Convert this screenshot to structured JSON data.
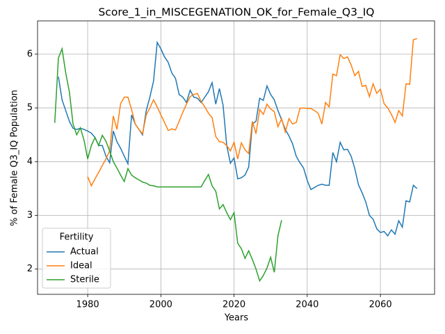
{
  "chart_data": {
    "type": "line",
    "title": "Score_1_in_MISCEGENATION_OK_for_Female_Q3_IQ",
    "xlabel": "Years",
    "ylabel": "% of Female Q3_IQ Population",
    "legend_title": "Fertility",
    "legend": "lower left",
    "grid": true,
    "xlim": [
      1966.3,
      2074.8
    ],
    "ylim": [
      1.53,
      6.62
    ],
    "xticks": [
      1980,
      2000,
      2020,
      2040,
      2060
    ],
    "yticks": [
      2,
      3,
      4,
      5,
      6
    ],
    "x": [
      1971,
      1972,
      1973,
      1974,
      1975,
      1976,
      1977,
      1978,
      1979,
      1980,
      1981,
      1982,
      1983,
      1984,
      1985,
      1986,
      1987,
      1988,
      1989,
      1990,
      1991,
      1992,
      1993,
      1994,
      1995,
      1996,
      1997,
      1998,
      1999,
      2000,
      2001,
      2002,
      2003,
      2004,
      2005,
      2006,
      2007,
      2008,
      2009,
      2010,
      2011,
      2012,
      2013,
      2014,
      2015,
      2016,
      2017,
      2018,
      2019,
      2020,
      2021,
      2022,
      2023,
      2024,
      2025,
      2026,
      2027,
      2028,
      2029,
      2030,
      2031,
      2032,
      2033,
      2034,
      2035,
      2036,
      2037,
      2038,
      2039,
      2040,
      2041,
      2042,
      2043,
      2044,
      2045,
      2046,
      2047,
      2048,
      2049,
      2050,
      2051,
      2052,
      2053,
      2054,
      2055,
      2056,
      2057,
      2058,
      2059,
      2060,
      2061,
      2062,
      2063,
      2064,
      2065,
      2066,
      2067,
      2068,
      2069,
      2070
    ],
    "series": [
      {
        "name": "Actual",
        "color": "#1f77b4",
        "values": [
          null,
          5.58,
          5.15,
          4.95,
          4.75,
          4.62,
          4.6,
          4.62,
          4.6,
          4.57,
          4.53,
          4.45,
          4.3,
          4.3,
          4.1,
          3.98,
          4.57,
          4.37,
          4.25,
          4.1,
          3.96,
          4.87,
          4.7,
          4.6,
          4.5,
          4.95,
          5.2,
          5.5,
          6.22,
          6.1,
          5.95,
          5.85,
          5.65,
          5.55,
          5.25,
          5.2,
          5.1,
          5.33,
          5.2,
          5.18,
          5.1,
          5.2,
          5.3,
          5.47,
          5.07,
          5.36,
          5.05,
          4.3,
          3.97,
          4.07,
          3.68,
          3.7,
          3.75,
          3.9,
          4.7,
          4.75,
          5.18,
          5.14,
          5.41,
          5.25,
          5.15,
          4.95,
          4.78,
          4.6,
          4.48,
          4.33,
          4.1,
          3.98,
          3.88,
          3.65,
          3.48,
          3.52,
          3.56,
          3.58,
          3.56,
          3.56,
          4.17,
          4.0,
          4.36,
          4.22,
          4.23,
          4.1,
          3.87,
          3.57,
          3.42,
          3.25,
          3.0,
          2.93,
          2.75,
          2.68,
          2.7,
          2.62,
          2.73,
          2.65,
          2.9,
          2.78,
          3.27,
          3.25,
          3.56,
          3.5
        ]
      },
      {
        "name": "Ideal",
        "color": "#ff7f0e",
        "values": [
          null,
          null,
          null,
          null,
          null,
          null,
          null,
          null,
          null,
          3.72,
          3.55,
          3.68,
          3.8,
          3.93,
          4.05,
          4.2,
          4.85,
          4.6,
          5.08,
          5.2,
          5.2,
          4.97,
          4.7,
          4.6,
          4.52,
          4.87,
          5.0,
          5.15,
          5.02,
          4.87,
          4.73,
          4.58,
          4.61,
          4.59,
          4.75,
          4.92,
          5.07,
          5.21,
          5.25,
          5.27,
          5.12,
          5.02,
          4.9,
          4.82,
          4.47,
          4.37,
          4.36,
          4.3,
          4.2,
          4.36,
          4.05,
          4.35,
          4.22,
          4.15,
          4.75,
          4.52,
          4.97,
          4.88,
          5.07,
          4.98,
          4.93,
          4.65,
          4.8,
          4.55,
          4.8,
          4.7,
          4.73,
          4.99,
          5.0,
          4.99,
          4.99,
          4.95,
          4.9,
          4.7,
          5.1,
          5.02,
          5.63,
          5.6,
          5.99,
          5.92,
          5.95,
          5.8,
          5.6,
          5.68,
          5.4,
          5.42,
          5.21,
          5.45,
          5.27,
          5.35,
          5.08,
          5.0,
          4.88,
          4.73,
          4.95,
          4.85,
          5.45,
          5.44,
          6.27,
          6.29
        ]
      },
      {
        "name": "Sterile",
        "color": "#2ca02c",
        "values": [
          4.72,
          5.93,
          6.1,
          5.65,
          5.3,
          4.7,
          4.5,
          4.63,
          4.4,
          4.05,
          4.3,
          4.45,
          4.3,
          4.49,
          4.38,
          4.2,
          4.0,
          3.88,
          3.75,
          3.63,
          3.87,
          3.75,
          3.7,
          3.66,
          3.62,
          3.6,
          3.56,
          3.55,
          3.53,
          3.53,
          3.53,
          3.53,
          3.53,
          3.53,
          3.53,
          3.53,
          3.53,
          3.53,
          3.53,
          3.53,
          3.53,
          3.65,
          3.76,
          3.55,
          3.45,
          3.12,
          3.2,
          3.05,
          2.92,
          3.05,
          2.48,
          2.38,
          2.2,
          2.34,
          2.18,
          2.0,
          1.78,
          1.88,
          2.02,
          2.22,
          1.94,
          2.62,
          2.91,
          null,
          null,
          null,
          null,
          null,
          null,
          null,
          null,
          null,
          null,
          null,
          null,
          null,
          null,
          null,
          null,
          null,
          null,
          null,
          null,
          null,
          null,
          null,
          null,
          null,
          null,
          null,
          null,
          null,
          null,
          null,
          null,
          null,
          null,
          null,
          null,
          null
        ]
      }
    ]
  }
}
